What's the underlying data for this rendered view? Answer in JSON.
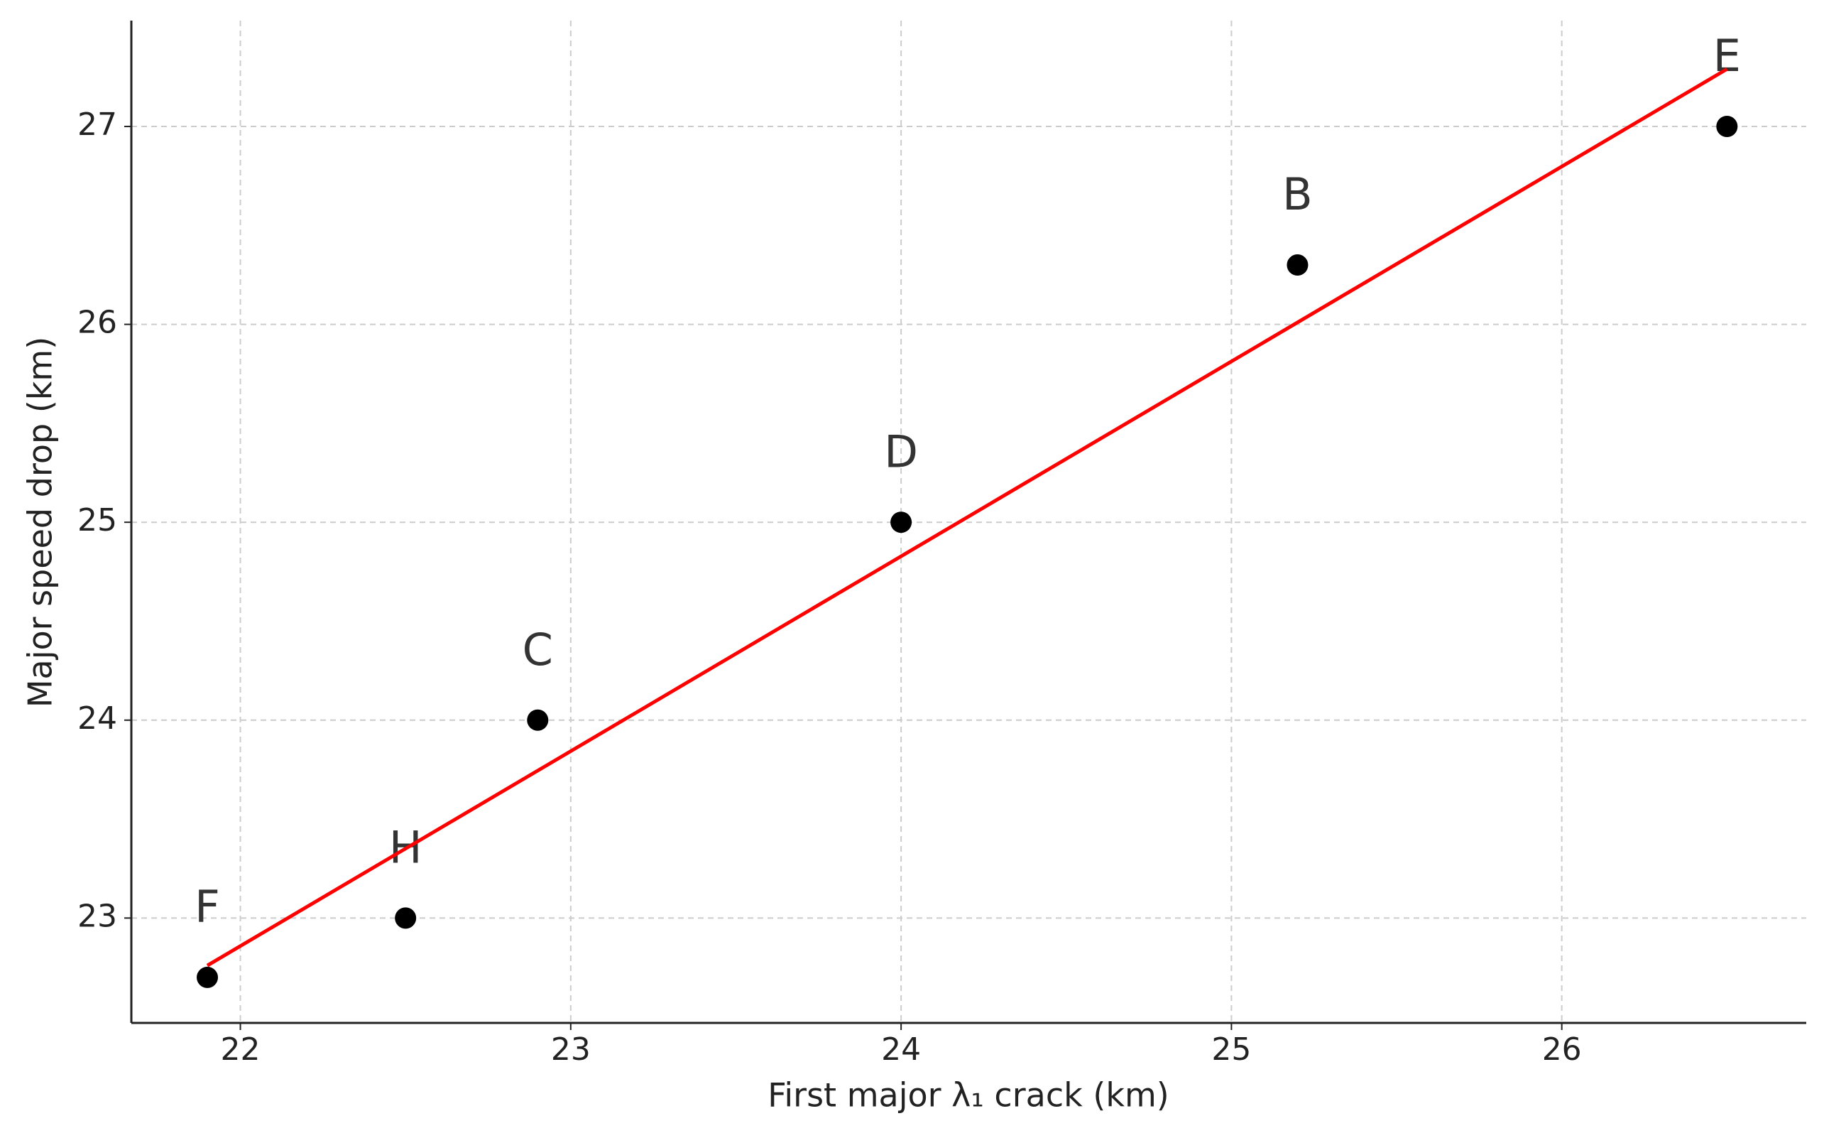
{
  "chart_data": {
    "type": "scatter",
    "x_label": "First major λ₁ crack (km)",
    "y_label": "Major speed drop (km)",
    "xlim": [
      21.67,
      26.74
    ],
    "ylim": [
      22.47,
      27.535
    ],
    "xticks": [
      22,
      23,
      24,
      25,
      26
    ],
    "yticks": [
      23,
      24,
      25,
      26,
      27
    ],
    "grid": true,
    "series": [
      {
        "type": "scatter",
        "color": "#000000",
        "x": [
          21.9,
          22.5,
          22.9,
          24.0,
          25.2,
          26.5
        ],
        "values": [
          22.7,
          23.0,
          24.0,
          25.0,
          26.3,
          27.0
        ],
        "labels": [
          "F",
          "H",
          "C",
          "D",
          "B",
          "E"
        ]
      },
      {
        "type": "line",
        "color": "#ff0000",
        "x": [
          21.9,
          26.5
        ],
        "values": [
          22.76,
          27.29
        ]
      }
    ]
  }
}
